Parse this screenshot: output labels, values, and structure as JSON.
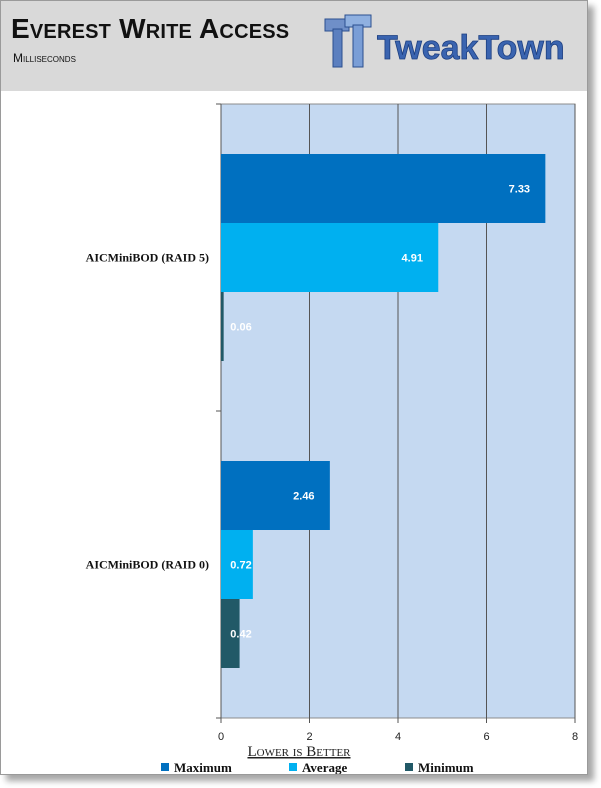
{
  "header": {
    "title": "Everest Write Access",
    "subtitle": "Milliseconds",
    "logo_text": "TweakTown",
    "logo_icon": "tweaktown-tt-logo-icon"
  },
  "chart_data": {
    "type": "bar",
    "orientation": "horizontal",
    "categories": [
      "AICMiniBOD (RAID 5)",
      "AICMiniBOD (RAID 0)"
    ],
    "series": [
      {
        "name": "Maximum",
        "color": "#0070c0",
        "values": [
          7.33,
          2.46
        ]
      },
      {
        "name": "Average",
        "color": "#00b0f0",
        "values": [
          4.91,
          0.72
        ]
      },
      {
        "name": "Minimum",
        "color": "#215967",
        "values": [
          0.06,
          0.42
        ]
      }
    ],
    "value_labels": [
      [
        "7.33",
        "2.46"
      ],
      [
        "4.91",
        "0.72"
      ],
      [
        "0.06",
        "0.42"
      ]
    ],
    "xlim": [
      0,
      8
    ],
    "xticks": [
      0,
      2,
      4,
      6,
      8
    ],
    "grid": true,
    "legend_position": "bottom",
    "note": "Lower is Better",
    "plot_background": "#c5d9f1"
  }
}
